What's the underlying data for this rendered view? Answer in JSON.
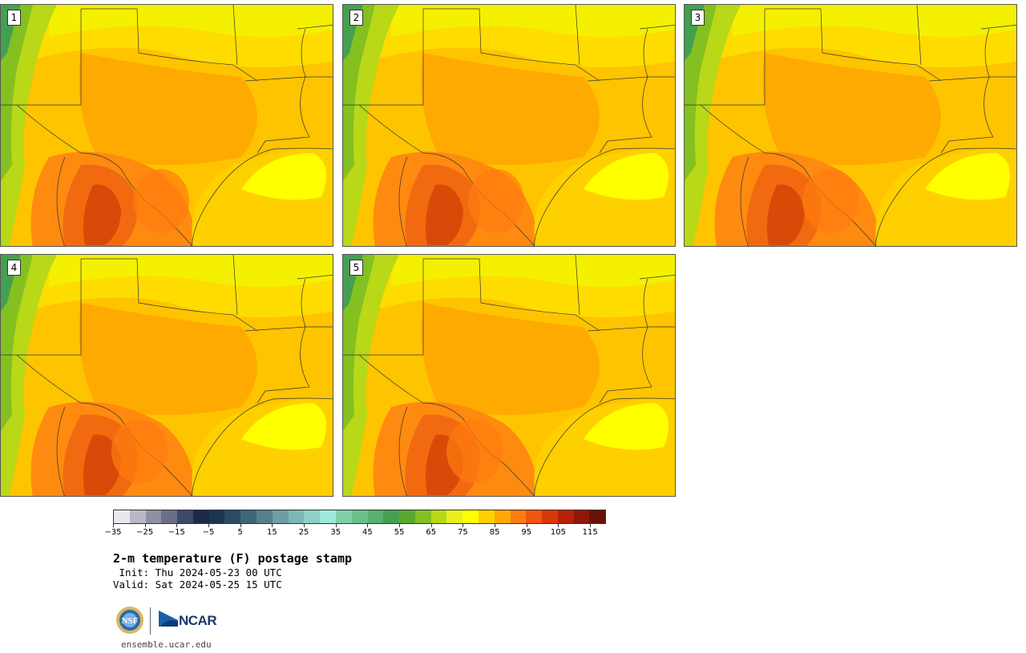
{
  "panels": [
    {
      "label": "1"
    },
    {
      "label": "2"
    },
    {
      "label": "3"
    },
    {
      "label": "4"
    },
    {
      "label": "5"
    }
  ],
  "colorbar": {
    "colors": [
      "#e8e8ee",
      "#b8b8c8",
      "#9090a4",
      "#6a6f88",
      "#3a4a68",
      "#1a2a48",
      "#1e3550",
      "#2c4a62",
      "#3e6678",
      "#55808c",
      "#6c9ea4",
      "#7cb8b6",
      "#8cd0c8",
      "#a0e8dc",
      "#80d0a8",
      "#6cc08c",
      "#58b070",
      "#44a050",
      "#5aa830",
      "#84c020",
      "#b8d818",
      "#e8f020",
      "#ffff00",
      "#ffd000",
      "#ffa800",
      "#ff7c10",
      "#f25510",
      "#d83808",
      "#b82008",
      "#901608",
      "#6a1008"
    ],
    "tick_labels": [
      "−35",
      "−25",
      "−15",
      "−5",
      "5",
      "15",
      "25",
      "35",
      "45",
      "55",
      "65",
      "75",
      "85",
      "95",
      "105",
      "115"
    ]
  },
  "title": "2-m temperature (F) postage stamp",
  "init": " Init: Thu 2024-05-23 00 UTC",
  "valid": "Valid: Sat 2024-05-25 15 UTC",
  "logos": {
    "ncar": "NCAR"
  },
  "site": "ensemble.ucar.edu"
}
